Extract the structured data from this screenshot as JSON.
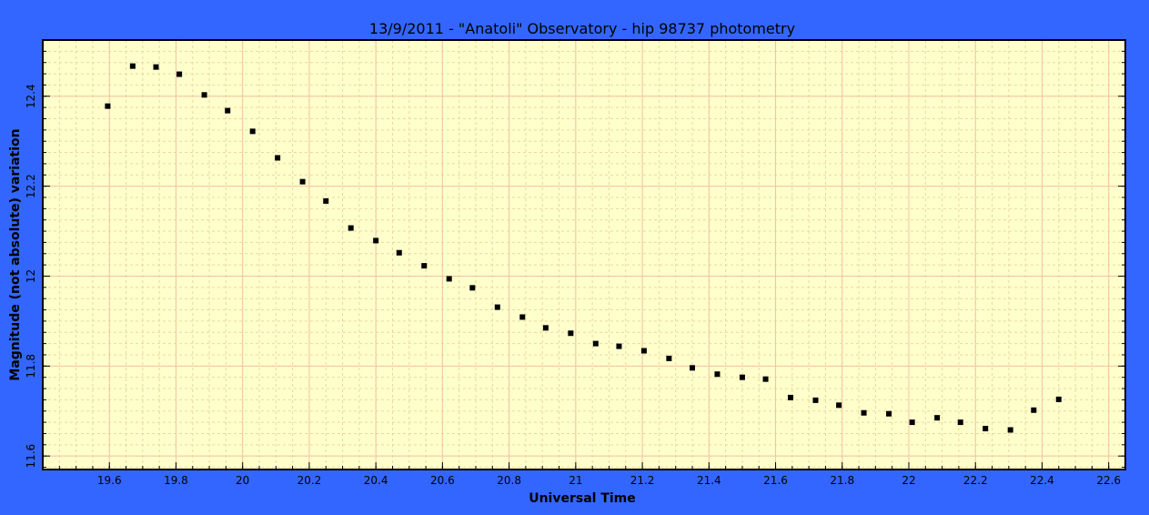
{
  "colors": {
    "background": "#3366ff",
    "plot_area": "#ffffcc",
    "major_grid": "#f2c4a0",
    "minor_grid": "#e6d9a0",
    "marker": "#000000"
  },
  "chart_data": {
    "type": "scatter",
    "title": "13/9/2011 - \"Anatoli\" Observatory - hip 98737 photometry",
    "xlabel": "Universal Time",
    "ylabel": "Magnitude (not absolute) variation",
    "xlim": [
      19.4,
      22.65
    ],
    "ylim": [
      12.525,
      11.57
    ],
    "y_inverted": true,
    "x_ticks": [
      19.6,
      19.8,
      20,
      20.2,
      20.4,
      20.6,
      20.8,
      21,
      21.2,
      21.4,
      21.6,
      21.8,
      22,
      22.2,
      22.4,
      22.6
    ],
    "x_tick_labels": [
      "19.6",
      "19.8",
      "20",
      "20.2",
      "20.4",
      "20.6",
      "20.8",
      "21",
      "21.2",
      "21.4",
      "21.6",
      "21.8",
      "22",
      "22.2",
      "22.4",
      "22.6"
    ],
    "y_ticks": [
      11.6,
      11.8,
      12,
      12.2,
      12.4
    ],
    "y_tick_labels": [
      "11.6",
      "11.8",
      "12",
      "12.2",
      "12.4"
    ],
    "grid": true,
    "minor_grid": true,
    "legend": "none",
    "points": [
      {
        "x": 19.595,
        "y": 12.378
      },
      {
        "x": 19.67,
        "y": 12.467
      },
      {
        "x": 19.74,
        "y": 12.465
      },
      {
        "x": 19.81,
        "y": 12.449
      },
      {
        "x": 19.885,
        "y": 12.403
      },
      {
        "x": 19.955,
        "y": 12.368
      },
      {
        "x": 20.03,
        "y": 12.322
      },
      {
        "x": 20.105,
        "y": 12.263
      },
      {
        "x": 20.18,
        "y": 12.21
      },
      {
        "x": 20.25,
        "y": 12.167
      },
      {
        "x": 20.325,
        "y": 12.107
      },
      {
        "x": 20.4,
        "y": 12.079
      },
      {
        "x": 20.47,
        "y": 12.052
      },
      {
        "x": 20.545,
        "y": 12.023
      },
      {
        "x": 20.62,
        "y": 11.994
      },
      {
        "x": 20.69,
        "y": 11.974
      },
      {
        "x": 20.765,
        "y": 11.931
      },
      {
        "x": 20.84,
        "y": 11.909
      },
      {
        "x": 20.91,
        "y": 11.885
      },
      {
        "x": 20.985,
        "y": 11.873
      },
      {
        "x": 21.06,
        "y": 11.85
      },
      {
        "x": 21.13,
        "y": 11.844
      },
      {
        "x": 21.205,
        "y": 11.834
      },
      {
        "x": 21.28,
        "y": 11.817
      },
      {
        "x": 21.35,
        "y": 11.796
      },
      {
        "x": 21.425,
        "y": 11.782
      },
      {
        "x": 21.5,
        "y": 11.775
      },
      {
        "x": 21.57,
        "y": 11.771
      },
      {
        "x": 21.645,
        "y": 11.73
      },
      {
        "x": 21.72,
        "y": 11.724
      },
      {
        "x": 21.79,
        "y": 11.713
      },
      {
        "x": 21.865,
        "y": 11.696
      },
      {
        "x": 21.94,
        "y": 11.694
      },
      {
        "x": 22.01,
        "y": 11.675
      },
      {
        "x": 22.085,
        "y": 11.685
      },
      {
        "x": 22.155,
        "y": 11.675
      },
      {
        "x": 22.23,
        "y": 11.661
      },
      {
        "x": 22.305,
        "y": 11.658
      },
      {
        "x": 22.375,
        "y": 11.702
      },
      {
        "x": 22.45,
        "y": 11.726
      }
    ]
  }
}
